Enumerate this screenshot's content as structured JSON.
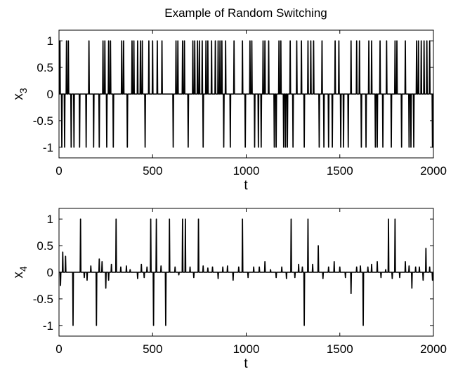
{
  "chart_data": [
    {
      "type": "line",
      "title": "Example of Random Switching",
      "xlabel": "t",
      "ylabel": "x",
      "ylabel_sub": "3",
      "xlim": [
        0,
        2000
      ],
      "ylim": [
        -1.2,
        1.2
      ],
      "xticks": [
        0,
        500,
        1000,
        1500,
        2000
      ],
      "yticks": [
        -1,
        -0.5,
        0,
        0.5,
        1
      ],
      "xtick_labels": [
        "0",
        "500",
        "1000",
        "1500",
        "2000"
      ],
      "ytick_labels": [
        "-1",
        "-0.5",
        "0",
        "0.5",
        "1"
      ],
      "grid": false,
      "series": [
        {
          "pulses": [
            [
              5,
              1
            ],
            [
              15,
              -1
            ],
            [
              30,
              -1
            ],
            [
              40,
              1
            ],
            [
              50,
              1
            ],
            [
              65,
              -1
            ],
            [
              80,
              -1
            ],
            [
              110,
              -1
            ],
            [
              145,
              -1
            ],
            [
              160,
              1
            ],
            [
              185,
              -1
            ],
            [
              215,
              -1
            ],
            [
              235,
              1
            ],
            [
              245,
              1
            ],
            [
              255,
              -1
            ],
            [
              265,
              1
            ],
            [
              275,
              1
            ],
            [
              290,
              -1
            ],
            [
              335,
              1
            ],
            [
              345,
              1
            ],
            [
              365,
              -1
            ],
            [
              390,
              1
            ],
            [
              400,
              1
            ],
            [
              420,
              1
            ],
            [
              435,
              1
            ],
            [
              445,
              1
            ],
            [
              460,
              -1
            ],
            [
              480,
              1
            ],
            [
              500,
              1
            ],
            [
              525,
              1
            ],
            [
              550,
              1
            ],
            [
              610,
              -1
            ],
            [
              625,
              1
            ],
            [
              635,
              1
            ],
            [
              660,
              1
            ],
            [
              670,
              1
            ],
            [
              690,
              -1
            ],
            [
              715,
              1
            ],
            [
              725,
              1
            ],
            [
              740,
              1
            ],
            [
              750,
              1
            ],
            [
              765,
              1
            ],
            [
              770,
              -1
            ],
            [
              785,
              1
            ],
            [
              795,
              1
            ],
            [
              815,
              1
            ],
            [
              835,
              1
            ],
            [
              850,
              1
            ],
            [
              860,
              1
            ],
            [
              870,
              1
            ],
            [
              880,
              -1
            ],
            [
              890,
              1
            ],
            [
              915,
              -1
            ],
            [
              935,
              1
            ],
            [
              980,
              1
            ],
            [
              995,
              -1
            ],
            [
              1020,
              1
            ],
            [
              1030,
              1
            ],
            [
              1045,
              -1
            ],
            [
              1065,
              -1
            ],
            [
              1080,
              -1
            ],
            [
              1090,
              1
            ],
            [
              1100,
              1
            ],
            [
              1120,
              1
            ],
            [
              1150,
              -1
            ],
            [
              1160,
              -1
            ],
            [
              1175,
              1
            ],
            [
              1185,
              1
            ],
            [
              1200,
              -1
            ],
            [
              1210,
              -1
            ],
            [
              1220,
              -1
            ],
            [
              1235,
              1
            ],
            [
              1250,
              -1
            ],
            [
              1270,
              1
            ],
            [
              1295,
              1
            ],
            [
              1310,
              -1
            ],
            [
              1330,
              1
            ],
            [
              1345,
              1
            ],
            [
              1360,
              1
            ],
            [
              1390,
              -1
            ],
            [
              1405,
              1
            ],
            [
              1415,
              -1
            ],
            [
              1440,
              -1
            ],
            [
              1460,
              -1
            ],
            [
              1475,
              1
            ],
            [
              1495,
              1
            ],
            [
              1505,
              -1
            ],
            [
              1520,
              -1
            ],
            [
              1545,
              -1
            ],
            [
              1560,
              1
            ],
            [
              1590,
              1
            ],
            [
              1605,
              1
            ],
            [
              1615,
              -1
            ],
            [
              1640,
              -1
            ],
            [
              1655,
              1
            ],
            [
              1670,
              1
            ],
            [
              1690,
              -1
            ],
            [
              1700,
              -1
            ],
            [
              1715,
              1
            ],
            [
              1730,
              -1
            ],
            [
              1750,
              1
            ],
            [
              1775,
              -1
            ],
            [
              1795,
              1
            ],
            [
              1805,
              1
            ],
            [
              1830,
              -1
            ],
            [
              1850,
              1
            ],
            [
              1870,
              -1
            ],
            [
              1880,
              -1
            ],
            [
              1895,
              -1
            ],
            [
              1910,
              1
            ],
            [
              1920,
              1
            ],
            [
              1935,
              1
            ],
            [
              1950,
              1
            ],
            [
              1965,
              1
            ],
            [
              1980,
              1
            ],
            [
              1995,
              -1
            ]
          ]
        }
      ]
    },
    {
      "type": "line",
      "title": "",
      "xlabel": "t",
      "ylabel": "x",
      "ylabel_sub": "4",
      "xlim": [
        0,
        2000
      ],
      "ylim": [
        -1.2,
        1.2
      ],
      "xticks": [
        0,
        500,
        1000,
        1500,
        2000
      ],
      "yticks": [
        -1,
        -0.5,
        0,
        0.5,
        1
      ],
      "xtick_labels": [
        "0",
        "500",
        "1000",
        "1500",
        "2000"
      ],
      "ytick_labels": [
        "-1",
        "-0.5",
        "0",
        "0.5",
        "1"
      ],
      "grid": false,
      "series": [
        {
          "pulses": [
            [
              8,
              -0.25
            ],
            [
              20,
              0.38
            ],
            [
              35,
              0.3
            ],
            [
              75,
              -1
            ],
            [
              115,
              1
            ],
            [
              135,
              -0.1
            ],
            [
              150,
              -0.15
            ],
            [
              170,
              0.12
            ],
            [
              200,
              -1
            ],
            [
              215,
              0.25
            ],
            [
              230,
              0.2
            ],
            [
              250,
              -0.3
            ],
            [
              265,
              -0.15
            ],
            [
              280,
              0.15
            ],
            [
              305,
              1
            ],
            [
              330,
              0.1
            ],
            [
              360,
              0.12
            ],
            [
              380,
              0.05
            ],
            [
              420,
              -0.12
            ],
            [
              440,
              0.15
            ],
            [
              455,
              -0.1
            ],
            [
              470,
              0.1
            ],
            [
              490,
              1
            ],
            [
              505,
              -1
            ],
            [
              520,
              1
            ],
            [
              545,
              0.12
            ],
            [
              570,
              -1
            ],
            [
              590,
              1
            ],
            [
              620,
              0.1
            ],
            [
              640,
              -0.05
            ],
            [
              660,
              1
            ],
            [
              675,
              1
            ],
            [
              700,
              0.1
            ],
            [
              720,
              -0.1
            ],
            [
              745,
              1
            ],
            [
              770,
              0.12
            ],
            [
              795,
              0.08
            ],
            [
              820,
              0.1
            ],
            [
              850,
              -0.12
            ],
            [
              875,
              0.1
            ],
            [
              900,
              0.12
            ],
            [
              930,
              -0.15
            ],
            [
              960,
              0.1
            ],
            [
              980,
              1
            ],
            [
              1010,
              -0.1
            ],
            [
              1040,
              0.1
            ],
            [
              1070,
              0.1
            ],
            [
              1100,
              0.2
            ],
            [
              1130,
              0.05
            ],
            [
              1160,
              -0.1
            ],
            [
              1190,
              0.1
            ],
            [
              1215,
              -0.12
            ],
            [
              1240,
              1
            ],
            [
              1260,
              -0.1
            ],
            [
              1280,
              0.15
            ],
            [
              1300,
              0.1
            ],
            [
              1310,
              -1
            ],
            [
              1330,
              1
            ],
            [
              1355,
              0.15
            ],
            [
              1385,
              0.5
            ],
            [
              1410,
              -0.12
            ],
            [
              1440,
              0.1
            ],
            [
              1470,
              0.2
            ],
            [
              1500,
              0.1
            ],
            [
              1530,
              -0.1
            ],
            [
              1560,
              -0.4
            ],
            [
              1590,
              0.1
            ],
            [
              1610,
              0.12
            ],
            [
              1625,
              -1
            ],
            [
              1650,
              0.1
            ],
            [
              1670,
              0.15
            ],
            [
              1700,
              0.2
            ],
            [
              1720,
              -0.1
            ],
            [
              1745,
              0.05
            ],
            [
              1760,
              1
            ],
            [
              1780,
              -0.12
            ],
            [
              1795,
              1
            ],
            [
              1820,
              -0.1
            ],
            [
              1850,
              0.2
            ],
            [
              1870,
              0.12
            ],
            [
              1885,
              -0.3
            ],
            [
              1905,
              0.1
            ],
            [
              1925,
              0.1
            ],
            [
              1945,
              -0.15
            ],
            [
              1960,
              0.45
            ],
            [
              1980,
              0.1
            ],
            [
              1995,
              -0.15
            ]
          ]
        }
      ]
    }
  ]
}
